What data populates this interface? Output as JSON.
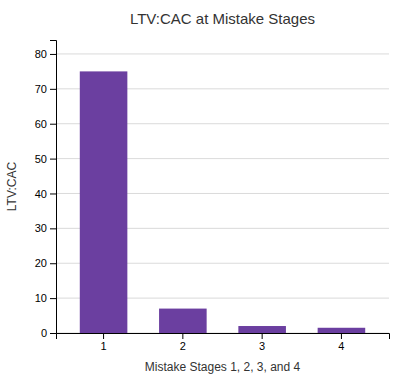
{
  "chart_data": {
    "type": "bar",
    "title": "LTV:CAC at Mistake Stages",
    "xlabel": "Mistake Stages 1, 2, 3, and 4",
    "ylabel": "LTV:CAC",
    "categories": [
      "1",
      "2",
      "3",
      "4"
    ],
    "values": [
      75,
      7,
      2,
      1.5
    ],
    "color": "#6b3fa0",
    "ylim": [
      0,
      84
    ],
    "yticks": [
      0,
      10,
      20,
      30,
      40,
      50,
      60,
      70,
      80
    ],
    "grid": true
  }
}
